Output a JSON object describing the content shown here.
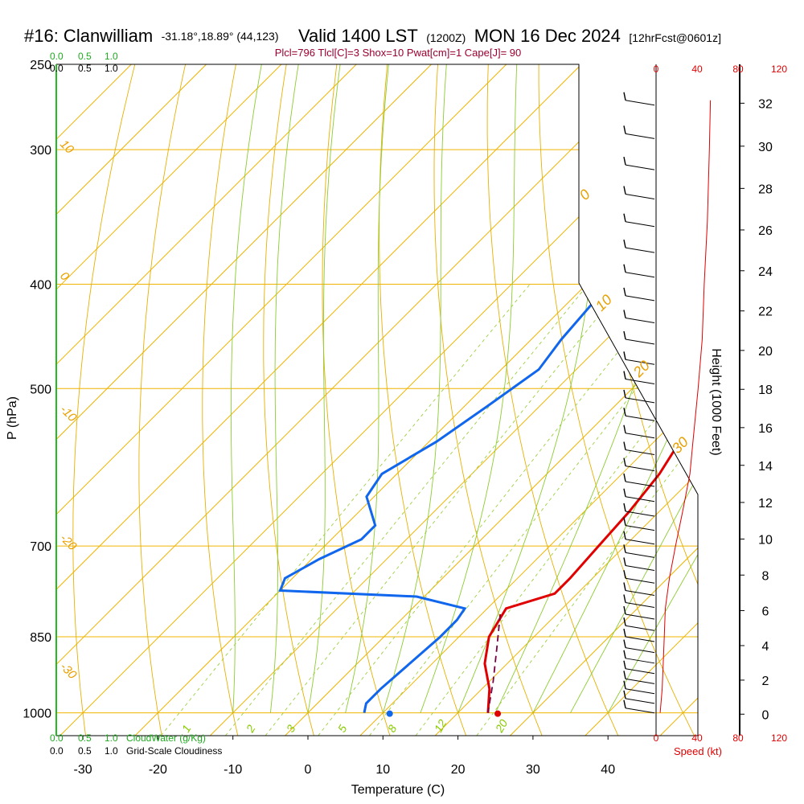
{
  "header": {
    "title_main": "#16: Clanwilliam",
    "coords": "-31.18°,18.89° (44,123)",
    "valid": "Valid 1400 LST",
    "utc": "(1200Z)",
    "date": "MON 16 Dec 2024",
    "fcst": "[12hrFcst@0601z]",
    "indices": "Plcl=796 Tlcl[C]=3 Shox=10 Pwat[cm]=1 Cape[J]= 90"
  },
  "chart_data": {
    "type": "line",
    "subtype": "skew-T log-P sounding",
    "xlabel": "Temperature (C)",
    "ylabel": "P (hPa)",
    "right_label": "Height (1000 Feet)",
    "xlim": [
      -35,
      45
    ],
    "ylim_hpa": [
      250,
      1050
    ],
    "x_ticks": [
      "-30",
      "-20",
      "-10",
      "0",
      "10",
      "20",
      "30",
      "40"
    ],
    "p_ticks": [
      "250",
      "300",
      "400",
      "500",
      "700",
      "850",
      "1000"
    ],
    "height_ticks": [
      "0",
      "2",
      "4",
      "6",
      "8",
      "10",
      "12",
      "14",
      "16",
      "18",
      "20",
      "22",
      "24",
      "26",
      "28",
      "30",
      "32"
    ],
    "series": [
      {
        "color": "#e00000",
        "points": [
          [
            -3.5,
            270
          ],
          [
            0,
            300
          ],
          [
            4.5,
            350
          ],
          [
            7.5,
            400
          ],
          [
            9,
            450
          ],
          [
            10.5,
            500
          ],
          [
            13,
            550
          ],
          [
            15,
            600
          ],
          [
            16,
            650
          ],
          [
            16.5,
            700
          ],
          [
            17,
            750
          ],
          [
            17,
            775
          ],
          [
            12.5,
            800
          ],
          [
            14,
            850
          ],
          [
            17,
            900
          ],
          [
            21,
            950
          ],
          [
            24,
            1000
          ]
        ]
      },
      {
        "color": "#1166ee",
        "points": [
          [
            -17,
            270
          ],
          [
            -18,
            300
          ],
          [
            -20,
            335
          ],
          [
            -20,
            350
          ],
          [
            -17.5,
            380
          ],
          [
            -17,
            400
          ],
          [
            -16,
            450
          ],
          [
            -15,
            480
          ],
          [
            -17,
            520
          ],
          [
            -19,
            560
          ],
          [
            -22,
            600
          ],
          [
            -21,
            630
          ],
          [
            -16,
            670
          ],
          [
            -16,
            690
          ],
          [
            -19,
            720
          ],
          [
            -21,
            750
          ],
          [
            -20,
            770
          ],
          [
            -1,
            780
          ],
          [
            7,
            800
          ],
          [
            7.5,
            820
          ],
          [
            7.5,
            850
          ],
          [
            7,
            900
          ],
          [
            6.5,
            950
          ],
          [
            6.5,
            980
          ],
          [
            7.5,
            1000
          ]
        ]
      },
      {
        "color": "#770044",
        "points": [
          [
            12.5,
            810
          ],
          [
            16.5,
            870
          ],
          [
            20.5,
            935
          ],
          [
            24,
            1000
          ]
        ]
      }
    ],
    "surface_temp": 25.3,
    "surface_dewpoint": 10.9,
    "dry_adiabat_labels": [
      "0",
      "10",
      "20",
      "30"
    ],
    "temp_isotherm_labels": [
      "10",
      "0",
      "-10",
      "-20",
      "-30"
    ],
    "mixing_ratio_labels": [
      "1",
      "2",
      "3",
      "5",
      "8",
      "12",
      "20"
    ],
    "cloud_scale": {
      "cloudwater_label": "CloudWater (g/Kg)",
      "cloudiness_label": "Grid-Scale Cloudiness",
      "ticks": [
        "0.0",
        "0.5",
        "1.0"
      ]
    },
    "wind_speed": {
      "label": "Speed (kt)",
      "ticks": [
        "0",
        "40",
        "80",
        "120"
      ],
      "profile_kt": [
        [
          4,
          1000
        ],
        [
          6,
          950
        ],
        [
          7,
          900
        ],
        [
          8,
          850
        ],
        [
          9,
          800
        ],
        [
          13,
          750
        ],
        [
          19,
          700
        ],
        [
          26,
          650
        ],
        [
          33,
          600
        ],
        [
          36,
          560
        ],
        [
          41,
          500
        ],
        [
          45,
          450
        ],
        [
          47,
          400
        ],
        [
          50,
          350
        ],
        [
          52,
          300
        ],
        [
          53,
          270
        ]
      ]
    },
    "grid": true
  }
}
